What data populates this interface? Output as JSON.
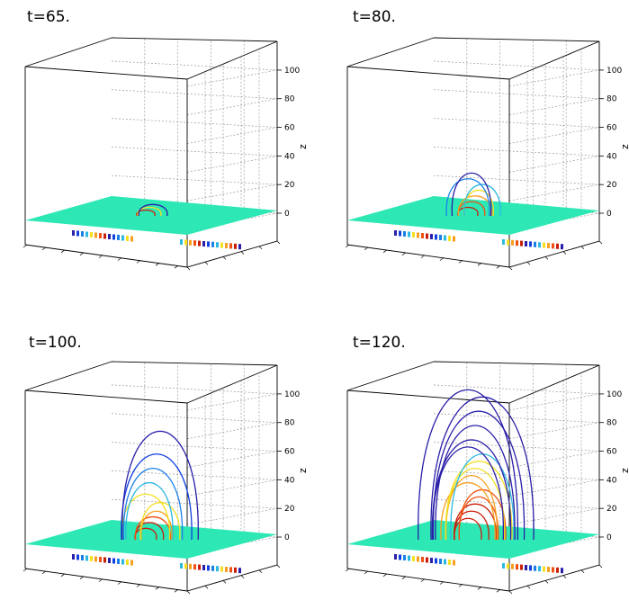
{
  "chart_data": [
    {
      "type": "3d-field-line-plot",
      "title": "t=65.",
      "zlabel": "z",
      "zticks": [
        0,
        20,
        40,
        60,
        80,
        100
      ],
      "zlim": [
        0,
        110
      ],
      "plane_color": "#2de8b5",
      "loop_heights": [
        4,
        6,
        8
      ]
    },
    {
      "type": "3d-field-line-plot",
      "title": "t=80.",
      "zlabel": "z",
      "zticks": [
        0,
        20,
        40,
        60,
        80,
        100
      ],
      "zlim": [
        0,
        110
      ],
      "plane_color": "#2de8b5",
      "loop_heights": [
        6,
        10,
        14,
        18,
        22,
        26,
        30
      ]
    },
    {
      "type": "3d-field-line-plot",
      "title": "t=100.",
      "zlabel": "z",
      "zticks": [
        0,
        20,
        40,
        60,
        80,
        100
      ],
      "zlim": [
        0,
        110
      ],
      "plane_color": "#2de8b5",
      "loop_heights": [
        8,
        12,
        16,
        20,
        26,
        32,
        40,
        50,
        60,
        76
      ]
    },
    {
      "type": "3d-field-line-plot",
      "title": "t=120.",
      "zlabel": "z",
      "zticks": [
        0,
        20,
        40,
        60,
        80,
        100
      ],
      "zlim": [
        0,
        110
      ],
      "plane_color": "#2de8b5",
      "loop_heights": [
        15,
        20,
        25,
        30,
        35,
        40,
        45,
        50,
        55,
        60,
        65,
        70,
        80,
        90,
        100,
        105
      ]
    }
  ],
  "colors": {
    "plane": "#2de8b5",
    "grid": "#9a9a9a",
    "frame": "#000000",
    "line_palette": [
      "#2a1fa8",
      "#1040e0",
      "#1a7fe8",
      "#2bb8e0",
      "#f5e020",
      "#f7a020",
      "#f05010",
      "#c81e0a"
    ]
  }
}
